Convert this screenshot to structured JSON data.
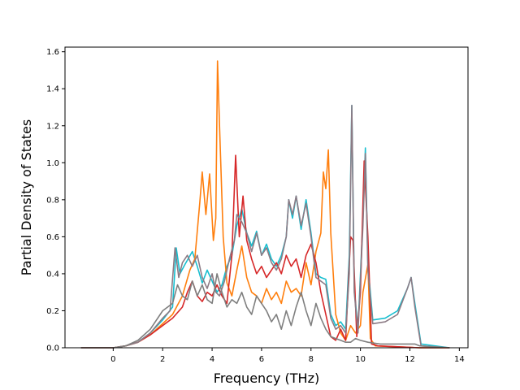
{
  "chart_data": {
    "type": "line",
    "title": "",
    "xlabel": "Frequency (THz)",
    "ylabel": "Partial Density of States",
    "xlim": [
      -1.95,
      14.35
    ],
    "ylim": [
      0.0,
      1.625
    ],
    "x_ticks": [
      0,
      2,
      4,
      6,
      8,
      10,
      12,
      14
    ],
    "y_ticks": [
      0.0,
      0.2,
      0.4,
      0.6,
      0.8,
      1.0,
      1.2,
      1.4,
      1.6
    ],
    "x_tick_labels": [
      "0",
      "2",
      "4",
      "6",
      "8",
      "10",
      "12",
      "14"
    ],
    "y_tick_labels": [
      "0.0",
      "0.2",
      "0.4",
      "0.6",
      "0.8",
      "1.0",
      "1.2",
      "1.4",
      "1.6"
    ],
    "grid": false,
    "legend": "none",
    "series": [
      {
        "color": "#17becf",
        "points": [
          [
            -1.3,
            0
          ],
          [
            0,
            0
          ],
          [
            0.5,
            0.01
          ],
          [
            1.0,
            0.03
          ],
          [
            1.5,
            0.08
          ],
          [
            2.0,
            0.15
          ],
          [
            2.4,
            0.22
          ],
          [
            2.55,
            0.54
          ],
          [
            2.7,
            0.4
          ],
          [
            2.9,
            0.45
          ],
          [
            3.2,
            0.52
          ],
          [
            3.4,
            0.44
          ],
          [
            3.6,
            0.35
          ],
          [
            3.8,
            0.42
          ],
          [
            4.0,
            0.36
          ],
          [
            4.2,
            0.3
          ],
          [
            4.4,
            0.34
          ],
          [
            4.6,
            0.44
          ],
          [
            4.8,
            0.5
          ],
          [
            5.0,
            0.66
          ],
          [
            5.2,
            0.75
          ],
          [
            5.4,
            0.62
          ],
          [
            5.6,
            0.55
          ],
          [
            5.8,
            0.63
          ],
          [
            6.0,
            0.5
          ],
          [
            6.2,
            0.56
          ],
          [
            6.4,
            0.48
          ],
          [
            6.6,
            0.44
          ],
          [
            6.8,
            0.5
          ],
          [
            7.0,
            0.6
          ],
          [
            7.1,
            0.8
          ],
          [
            7.25,
            0.7
          ],
          [
            7.4,
            0.82
          ],
          [
            7.6,
            0.64
          ],
          [
            7.8,
            0.8
          ],
          [
            8.0,
            0.62
          ],
          [
            8.2,
            0.4
          ],
          [
            8.4,
            0.38
          ],
          [
            8.6,
            0.37
          ],
          [
            8.8,
            0.18
          ],
          [
            9.0,
            0.12
          ],
          [
            9.2,
            0.14
          ],
          [
            9.4,
            0.1
          ],
          [
            9.55,
            0.5
          ],
          [
            9.65,
            1.31
          ],
          [
            9.75,
            0.32
          ],
          [
            9.9,
            0.1
          ],
          [
            10.1,
            0.7
          ],
          [
            10.2,
            1.08
          ],
          [
            10.3,
            0.45
          ],
          [
            10.5,
            0.15
          ],
          [
            11.0,
            0.16
          ],
          [
            11.5,
            0.2
          ],
          [
            11.9,
            0.32
          ],
          [
            12.05,
            0.38
          ],
          [
            12.2,
            0.24
          ],
          [
            12.45,
            0.02
          ],
          [
            13.6,
            0
          ]
        ]
      },
      {
        "color": "#ff7f0e",
        "points": [
          [
            -1.3,
            0
          ],
          [
            0,
            0
          ],
          [
            0.5,
            0.01
          ],
          [
            1.0,
            0.03
          ],
          [
            1.5,
            0.07
          ],
          [
            2.0,
            0.13
          ],
          [
            2.4,
            0.18
          ],
          [
            2.8,
            0.28
          ],
          [
            3.1,
            0.42
          ],
          [
            3.3,
            0.48
          ],
          [
            3.5,
            0.78
          ],
          [
            3.6,
            0.95
          ],
          [
            3.75,
            0.72
          ],
          [
            3.9,
            0.94
          ],
          [
            4.05,
            0.58
          ],
          [
            4.15,
            0.7
          ],
          [
            4.22,
            1.55
          ],
          [
            4.3,
            1.2
          ],
          [
            4.45,
            0.6
          ],
          [
            4.6,
            0.35
          ],
          [
            4.8,
            0.28
          ],
          [
            5.0,
            0.42
          ],
          [
            5.2,
            0.55
          ],
          [
            5.4,
            0.38
          ],
          [
            5.6,
            0.3
          ],
          [
            5.8,
            0.28
          ],
          [
            6.0,
            0.24
          ],
          [
            6.2,
            0.32
          ],
          [
            6.4,
            0.26
          ],
          [
            6.6,
            0.3
          ],
          [
            6.8,
            0.24
          ],
          [
            7.0,
            0.36
          ],
          [
            7.2,
            0.3
          ],
          [
            7.4,
            0.32
          ],
          [
            7.6,
            0.28
          ],
          [
            7.8,
            0.46
          ],
          [
            8.0,
            0.34
          ],
          [
            8.2,
            0.52
          ],
          [
            8.4,
            0.62
          ],
          [
            8.5,
            0.95
          ],
          [
            8.6,
            0.86
          ],
          [
            8.7,
            1.07
          ],
          [
            8.8,
            0.62
          ],
          [
            9.0,
            0.18
          ],
          [
            9.2,
            0.08
          ],
          [
            9.4,
            0.04
          ],
          [
            9.6,
            0.12
          ],
          [
            9.8,
            0.08
          ],
          [
            10.0,
            0.12
          ],
          [
            10.1,
            0.3
          ],
          [
            10.3,
            0.45
          ],
          [
            10.4,
            0.05
          ],
          [
            10.6,
            0.01
          ],
          [
            12.4,
            0
          ],
          [
            13.6,
            0
          ]
        ]
      },
      {
        "color": "#d62728",
        "points": [
          [
            -1.3,
            0
          ],
          [
            0,
            0
          ],
          [
            0.5,
            0.01
          ],
          [
            1.0,
            0.03
          ],
          [
            1.5,
            0.07
          ],
          [
            2.0,
            0.12
          ],
          [
            2.4,
            0.16
          ],
          [
            2.8,
            0.22
          ],
          [
            3.0,
            0.3
          ],
          [
            3.2,
            0.36
          ],
          [
            3.4,
            0.28
          ],
          [
            3.6,
            0.25
          ],
          [
            3.8,
            0.3
          ],
          [
            4.0,
            0.28
          ],
          [
            4.2,
            0.34
          ],
          [
            4.4,
            0.28
          ],
          [
            4.6,
            0.24
          ],
          [
            4.8,
            0.5
          ],
          [
            4.95,
            1.04
          ],
          [
            5.1,
            0.6
          ],
          [
            5.25,
            0.82
          ],
          [
            5.4,
            0.58
          ],
          [
            5.6,
            0.48
          ],
          [
            5.8,
            0.4
          ],
          [
            6.0,
            0.44
          ],
          [
            6.2,
            0.38
          ],
          [
            6.4,
            0.42
          ],
          [
            6.6,
            0.46
          ],
          [
            6.8,
            0.4
          ],
          [
            7.0,
            0.5
          ],
          [
            7.2,
            0.44
          ],
          [
            7.4,
            0.48
          ],
          [
            7.6,
            0.38
          ],
          [
            7.8,
            0.5
          ],
          [
            8.0,
            0.56
          ],
          [
            8.2,
            0.46
          ],
          [
            8.4,
            0.3
          ],
          [
            8.6,
            0.18
          ],
          [
            8.8,
            0.06
          ],
          [
            9.0,
            0.04
          ],
          [
            9.2,
            0.1
          ],
          [
            9.4,
            0.04
          ],
          [
            9.6,
            0.6
          ],
          [
            9.7,
            0.58
          ],
          [
            9.85,
            0.06
          ],
          [
            10.0,
            0.3
          ],
          [
            10.15,
            1.01
          ],
          [
            10.3,
            0.6
          ],
          [
            10.45,
            0.02
          ],
          [
            10.7,
            0.01
          ],
          [
            12.4,
            0
          ],
          [
            13.6,
            0
          ]
        ]
      },
      {
        "color": "#8c7b85",
        "points": [
          [
            -1.3,
            0
          ],
          [
            0,
            0
          ],
          [
            0.5,
            0.01
          ],
          [
            1.0,
            0.03
          ],
          [
            1.5,
            0.08
          ],
          [
            2.0,
            0.16
          ],
          [
            2.3,
            0.2
          ],
          [
            2.5,
            0.54
          ],
          [
            2.65,
            0.38
          ],
          [
            2.8,
            0.46
          ],
          [
            3.0,
            0.5
          ],
          [
            3.2,
            0.44
          ],
          [
            3.4,
            0.5
          ],
          [
            3.6,
            0.38
          ],
          [
            3.8,
            0.32
          ],
          [
            4.0,
            0.4
          ],
          [
            4.15,
            0.3
          ],
          [
            4.3,
            0.28
          ],
          [
            4.5,
            0.36
          ],
          [
            4.7,
            0.48
          ],
          [
            4.9,
            0.58
          ],
          [
            5.0,
            0.72
          ],
          [
            5.2,
            0.68
          ],
          [
            5.4,
            0.62
          ],
          [
            5.6,
            0.52
          ],
          [
            5.8,
            0.62
          ],
          [
            6.0,
            0.5
          ],
          [
            6.2,
            0.54
          ],
          [
            6.4,
            0.46
          ],
          [
            6.6,
            0.42
          ],
          [
            6.8,
            0.48
          ],
          [
            7.0,
            0.6
          ],
          [
            7.1,
            0.8
          ],
          [
            7.25,
            0.72
          ],
          [
            7.4,
            0.82
          ],
          [
            7.6,
            0.66
          ],
          [
            7.8,
            0.78
          ],
          [
            8.0,
            0.6
          ],
          [
            8.2,
            0.38
          ],
          [
            8.4,
            0.36
          ],
          [
            8.6,
            0.34
          ],
          [
            8.8,
            0.16
          ],
          [
            9.0,
            0.1
          ],
          [
            9.2,
            0.12
          ],
          [
            9.4,
            0.08
          ],
          [
            9.55,
            0.4
          ],
          [
            9.65,
            1.31
          ],
          [
            9.75,
            0.3
          ],
          [
            9.9,
            0.08
          ],
          [
            10.1,
            0.66
          ],
          [
            10.2,
            1.05
          ],
          [
            10.3,
            0.42
          ],
          [
            10.5,
            0.13
          ],
          [
            11.0,
            0.14
          ],
          [
            11.5,
            0.18
          ],
          [
            11.9,
            0.32
          ],
          [
            12.05,
            0.38
          ],
          [
            12.2,
            0.22
          ],
          [
            12.45,
            0.01
          ],
          [
            13.6,
            0
          ]
        ]
      },
      {
        "color": "#7f7f7f",
        "points": [
          [
            -1.3,
            0
          ],
          [
            0,
            0
          ],
          [
            0.5,
            0.01
          ],
          [
            1.0,
            0.04
          ],
          [
            1.5,
            0.1
          ],
          [
            2.0,
            0.2
          ],
          [
            2.4,
            0.24
          ],
          [
            2.6,
            0.34
          ],
          [
            2.8,
            0.28
          ],
          [
            3.0,
            0.26
          ],
          [
            3.2,
            0.36
          ],
          [
            3.4,
            0.28
          ],
          [
            3.6,
            0.34
          ],
          [
            3.8,
            0.26
          ],
          [
            4.0,
            0.24
          ],
          [
            4.2,
            0.4
          ],
          [
            4.4,
            0.3
          ],
          [
            4.6,
            0.22
          ],
          [
            4.8,
            0.26
          ],
          [
            5.0,
            0.24
          ],
          [
            5.2,
            0.3
          ],
          [
            5.4,
            0.22
          ],
          [
            5.6,
            0.18
          ],
          [
            5.8,
            0.28
          ],
          [
            6.0,
            0.24
          ],
          [
            6.2,
            0.2
          ],
          [
            6.4,
            0.14
          ],
          [
            6.6,
            0.18
          ],
          [
            6.8,
            0.1
          ],
          [
            7.0,
            0.2
          ],
          [
            7.2,
            0.12
          ],
          [
            7.4,
            0.22
          ],
          [
            7.6,
            0.3
          ],
          [
            7.8,
            0.2
          ],
          [
            8.0,
            0.12
          ],
          [
            8.2,
            0.24
          ],
          [
            8.4,
            0.16
          ],
          [
            8.6,
            0.1
          ],
          [
            8.8,
            0.06
          ],
          [
            9.0,
            0.05
          ],
          [
            9.2,
            0.04
          ],
          [
            9.4,
            0.03
          ],
          [
            9.6,
            0.03
          ],
          [
            9.8,
            0.05
          ],
          [
            10.0,
            0.04
          ],
          [
            10.3,
            0.03
          ],
          [
            10.8,
            0.02
          ],
          [
            11.5,
            0.02
          ],
          [
            12.2,
            0.02
          ],
          [
            12.4,
            0.01
          ],
          [
            13.6,
            0
          ]
        ]
      }
    ]
  }
}
